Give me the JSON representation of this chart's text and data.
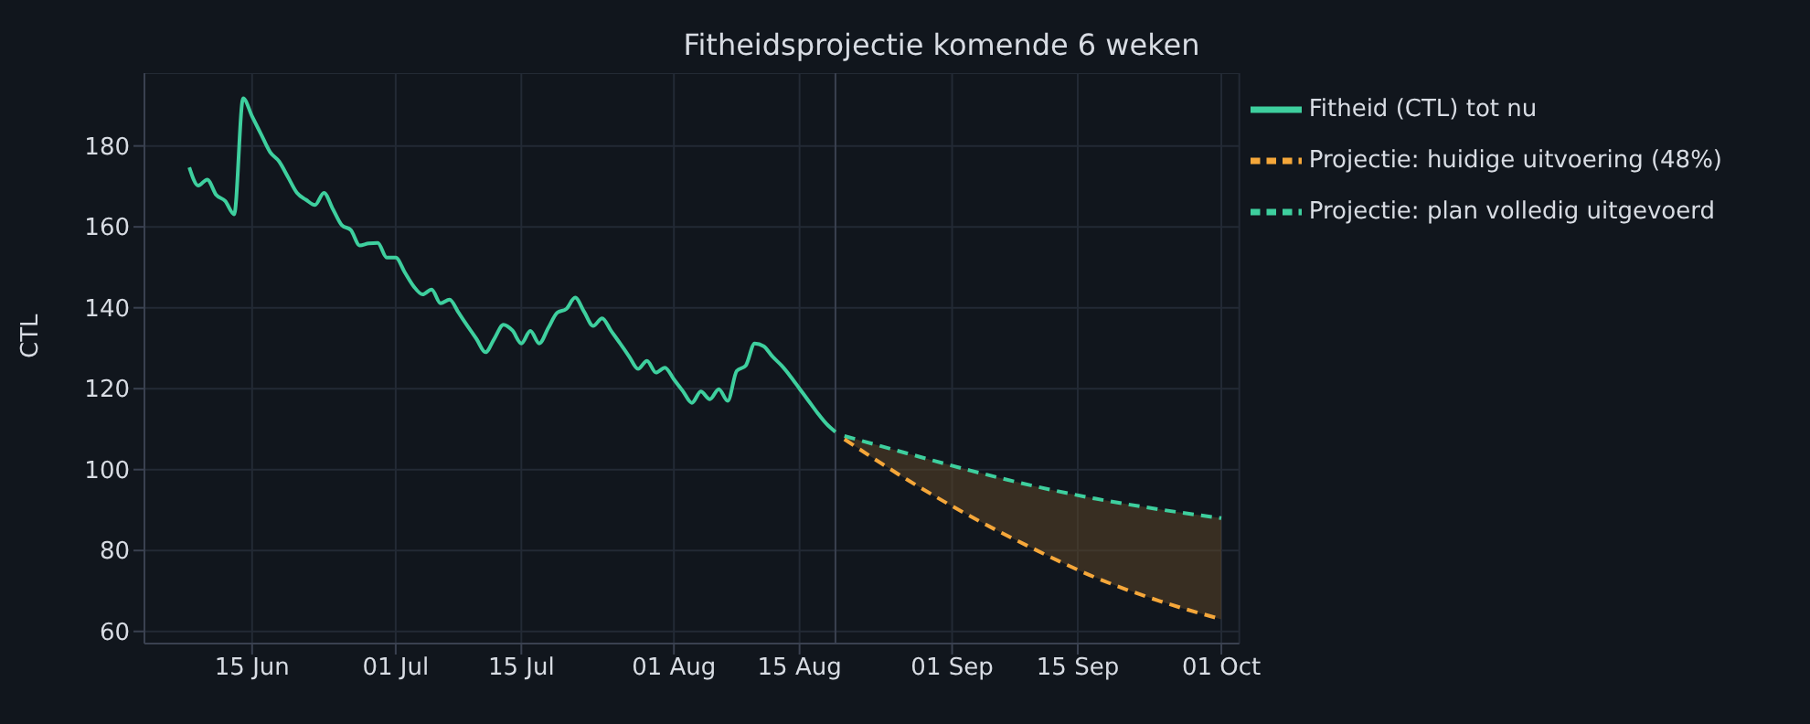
{
  "chart_data": {
    "type": "line",
    "title": "Fitheidsprojectie komende 6 weken",
    "ylabel": "CTL",
    "xlim": [
      "--06-03",
      "--10-03"
    ],
    "ylim": [
      57,
      198
    ],
    "xticks": [
      {
        "value": "--06-15",
        "label": "15 Jun"
      },
      {
        "value": "--07-01",
        "label": "01 Jul"
      },
      {
        "value": "--07-15",
        "label": "15 Jul"
      },
      {
        "value": "--08-01",
        "label": "01 Aug"
      },
      {
        "value": "--08-15",
        "label": "15 Aug"
      },
      {
        "value": "--09-01",
        "label": "01 Sep"
      },
      {
        "value": "--09-15",
        "label": "15 Sep"
      },
      {
        "value": "--10-01",
        "label": "01 Oct"
      }
    ],
    "yticks": [
      60,
      80,
      100,
      120,
      140,
      160,
      180
    ],
    "grid": true,
    "legend": "top right",
    "marker": "none",
    "ref_lines": [
      {
        "axis": "x",
        "value": "--08-19",
        "color": "#3a4150",
        "line_style": "solid"
      }
    ],
    "series": [
      {
        "name": "Fitheid (CTL) tot nu",
        "color": "#3ecf9e",
        "line_style": "solid",
        "x": [
          "--06-08",
          "--06-09",
          "--06-10",
          "--06-11",
          "--06-12",
          "--06-13",
          "--06-14",
          "--06-15",
          "--06-16",
          "--06-17",
          "--06-18",
          "--06-19",
          "--06-20",
          "--06-21",
          "--06-22",
          "--06-23",
          "--06-24",
          "--06-25",
          "--06-26",
          "--06-27",
          "--06-28",
          "--06-29",
          "--06-30",
          "--07-01",
          "--07-02",
          "--07-03",
          "--07-04",
          "--07-05",
          "--07-06",
          "--07-07",
          "--07-08",
          "--07-09",
          "--07-10",
          "--07-11",
          "--07-12",
          "--07-13",
          "--07-14",
          "--07-15",
          "--07-16",
          "--07-17",
          "--07-18",
          "--07-19",
          "--07-20",
          "--07-21",
          "--07-22",
          "--07-23",
          "--07-24",
          "--07-25",
          "--07-26",
          "--07-27",
          "--07-28",
          "--07-29",
          "--07-30",
          "--07-31",
          "--08-01",
          "--08-02",
          "--08-03",
          "--08-04",
          "--08-05",
          "--08-06",
          "--08-07",
          "--08-08",
          "--08-09",
          "--08-10",
          "--08-11",
          "--08-12",
          "--08-13",
          "--08-14",
          "--08-15",
          "--08-16",
          "--08-17",
          "--08-18",
          "--08-19"
        ],
        "values": [
          174.7,
          170.2,
          171.7,
          167.9,
          166.4,
          163.1,
          191.8,
          187.3,
          182.9,
          178.5,
          176.2,
          172.3,
          168.4,
          166.7,
          165.4,
          168.4,
          164.4,
          160.4,
          159.2,
          155.4,
          155.9,
          156.0,
          152.4,
          152.4,
          148.8,
          145.3,
          143.3,
          144.5,
          141.1,
          142.0,
          138.8,
          135.5,
          132.3,
          129.0,
          132.4,
          135.8,
          134.4,
          131.2,
          134.3,
          131.2,
          135.0,
          138.8,
          139.7,
          142.5,
          139.0,
          135.5,
          137.4,
          134.3,
          131.2,
          128.0,
          124.9,
          126.9,
          124.0,
          125.2,
          122.3,
          119.4,
          116.5,
          119.3,
          117.4,
          119.9,
          117.0,
          124.4,
          125.7,
          131.2,
          130.5,
          127.9,
          125.7,
          123.0,
          120.0,
          117.0,
          114.0,
          111.3,
          109.3
        ]
      },
      {
        "name": "Projectie: plan volledig uitgevoerd",
        "color": "#3ecf9e",
        "line_style": "dashed",
        "x": [
          "--08-20",
          "--08-27",
          "--09-03",
          "--09-10",
          "--09-17",
          "--09-24",
          "--10-01"
        ],
        "values": [
          108.3,
          104.0,
          99.8,
          96.0,
          92.8,
          90.2,
          88.0
        ],
        "lower": [
          107.5,
          97.5,
          88.5,
          80.5,
          73.3,
          67.6,
          63.0
        ],
        "upper": [
          108.3,
          104.0,
          99.8,
          96.0,
          92.8,
          90.2,
          88.0
        ]
      },
      {
        "name": "Projectie: huidige uitvoering (48%)",
        "color": "#f5a73a",
        "line_style": "dashed",
        "x": [
          "--08-20",
          "--08-27",
          "--09-03",
          "--09-10",
          "--09-17",
          "--09-24",
          "--10-01"
        ],
        "values": [
          107.5,
          97.5,
          88.5,
          80.5,
          73.3,
          67.6,
          63.0
        ]
      }
    ]
  }
}
